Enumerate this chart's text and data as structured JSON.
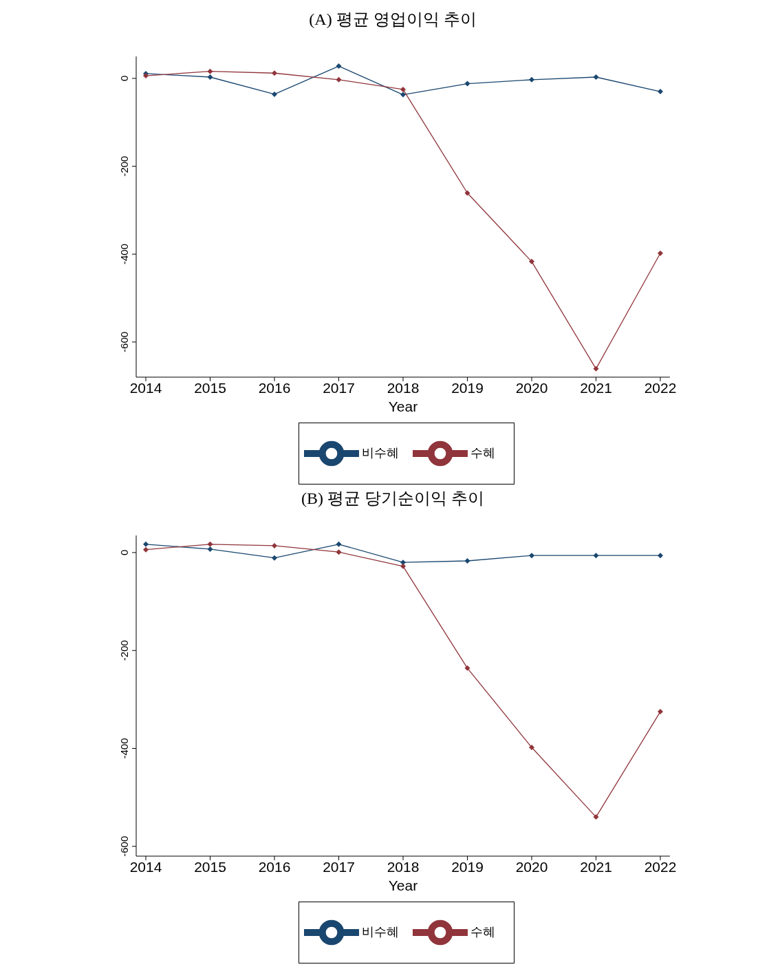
{
  "chart_data": [
    {
      "type": "line",
      "title": "(A) 평균 영업이익 추이",
      "xlabel": "Year",
      "categories": [
        "2014",
        "2015",
        "2016",
        "2017",
        "2018",
        "2019",
        "2020",
        "2021",
        "2022"
      ],
      "ylim": [
        -680,
        50
      ],
      "yticks": [
        0,
        -200,
        -400,
        -600
      ],
      "grid": false,
      "legend": "bottom",
      "marker": "diamond",
      "line_style": "solid",
      "series": [
        {
          "name": "비수혜",
          "color": "#1a476f",
          "values": [
            11,
            3,
            -36,
            28,
            -37,
            -12,
            -3,
            3,
            -30
          ]
        },
        {
          "name": "수혜",
          "color": "#90353b",
          "values": [
            6,
            16,
            12,
            -3,
            -25,
            -261,
            -417,
            -661,
            -398
          ]
        }
      ]
    },
    {
      "type": "line",
      "title": "(B) 평균 당기순이익 추이",
      "xlabel": "Year",
      "categories": [
        "2014",
        "2015",
        "2016",
        "2017",
        "2018",
        "2019",
        "2020",
        "2021",
        "2022"
      ],
      "ylim": [
        -620,
        35
      ],
      "yticks": [
        0,
        -200,
        -400,
        -600
      ],
      "grid": false,
      "legend": "bottom",
      "marker": "diamond",
      "line_style": "solid",
      "series": [
        {
          "name": "비수혜",
          "color": "#1a476f",
          "values": [
            17,
            7,
            -11,
            17,
            -20,
            -17,
            -6,
            -6,
            -6
          ]
        },
        {
          "name": "수혜",
          "color": "#90353b",
          "values": [
            6,
            17,
            14,
            1,
            -28,
            -236,
            -398,
            -540,
            -325
          ]
        }
      ]
    }
  ]
}
